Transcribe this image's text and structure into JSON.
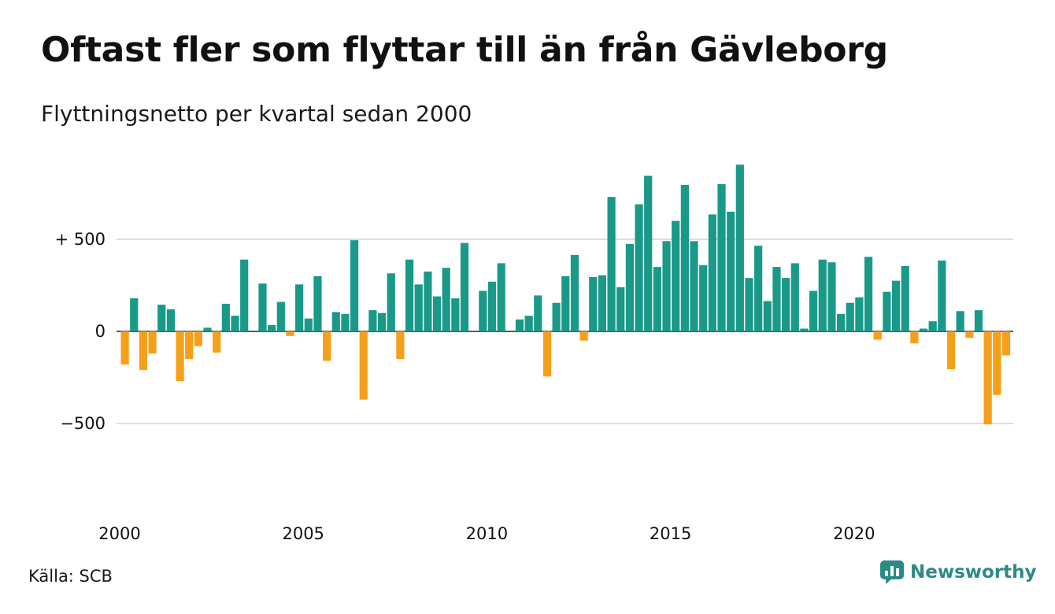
{
  "title": "Oftast fler som flyttar till än från Gävleborg",
  "subtitle": "Flyttningsnetto per kvartal sedan 2000",
  "source": "Källa: SCB",
  "brand": {
    "name": "Newsworthy",
    "icon": "newsworthy-logo-icon"
  },
  "colors": {
    "positive": "#1a9988",
    "negative": "#f5a01a",
    "grid": "#dddddd",
    "brand": "#2c8a86"
  },
  "chart_data": {
    "type": "bar",
    "title": "Oftast fler som flyttar till än från Gävleborg",
    "subtitle": "Flyttningsnetto per kvartal sedan 2000",
    "xlabel": "",
    "ylabel": "",
    "x_start": "2000-Q1",
    "ylim": [
      -890,
      930
    ],
    "y_ticks": [
      {
        "value": 500,
        "label": "+ 500"
      },
      {
        "value": 0,
        "label": "0"
      },
      {
        "value": -500,
        "label": "−500"
      }
    ],
    "x_ticks": [
      {
        "label": "2000",
        "index": 0
      },
      {
        "label": "2005",
        "index": 20
      },
      {
        "label": "2010",
        "index": 40
      },
      {
        "label": "2015",
        "index": 60
      },
      {
        "label": "2020",
        "index": 80
      }
    ],
    "grid": true,
    "series": [
      {
        "values": [
          -180,
          180,
          -210,
          -120,
          145,
          120,
          -270,
          -150,
          -80,
          20,
          -115,
          150,
          85,
          390,
          0,
          260,
          35,
          160,
          -25,
          255,
          70,
          300,
          -160,
          105,
          95,
          495,
          -370,
          115,
          100,
          315,
          -150,
          390,
          255,
          325,
          190,
          345,
          180,
          480,
          0,
          220,
          270,
          370,
          0,
          65,
          85,
          195,
          -245,
          155,
          300,
          415,
          -50,
          295,
          305,
          730,
          240,
          475,
          690,
          845,
          350,
          490,
          600,
          795,
          490,
          360,
          635,
          800,
          650,
          905,
          290,
          465,
          165,
          350,
          290,
          370,
          15,
          220,
          390,
          375,
          95,
          155,
          185,
          405,
          -45,
          215,
          275,
          355,
          -65,
          15,
          55,
          385,
          -205,
          110,
          -35,
          115,
          -505,
          -345,
          -130
        ]
      }
    ]
  }
}
